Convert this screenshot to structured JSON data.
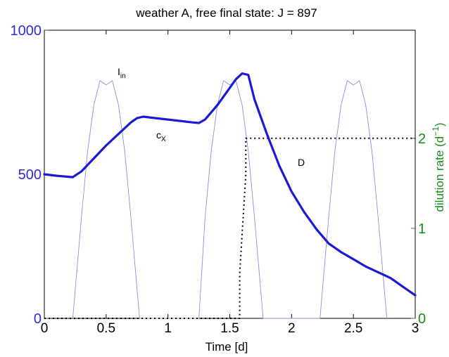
{
  "chart_data": {
    "type": "line",
    "title": "weather A, free final state: J = 897",
    "xlabel": "Time [d]",
    "ylabel_left": "",
    "ylabel_right": "dilution rate (d",
    "ylabel_right_sup": "−1",
    "ylabel_right_close": ")",
    "xlim": [
      0,
      3
    ],
    "ylim_left": [
      0,
      1000
    ],
    "ylim_right": [
      0,
      3.2
    ],
    "x_ticks": [
      "0",
      "0.5",
      "1",
      "1.5",
      "2",
      "2.5",
      "3"
    ],
    "x_tick_values": [
      0,
      0.5,
      1,
      1.5,
      2,
      2.5,
      3
    ],
    "y_left_ticks": [
      "0",
      "500",
      "1000"
    ],
    "y_left_tick_values": [
      0,
      500,
      1000
    ],
    "y_right_ticks": [
      "0",
      "1",
      "2"
    ],
    "y_right_tick_values": [
      0,
      1,
      2
    ],
    "annotations": {
      "i_in": {
        "main": "I",
        "sub": "in"
      },
      "c_x": {
        "main": "c",
        "sub": "X"
      },
      "d": {
        "main": "D",
        "sub": ""
      }
    },
    "series": [
      {
        "name": "cX",
        "axis": "left",
        "color": "#1a1ad6",
        "style": "thick-solid",
        "x": [
          0,
          0.1,
          0.23,
          0.3,
          0.4,
          0.5,
          0.6,
          0.7,
          0.75,
          0.8,
          0.9,
          1.0,
          1.1,
          1.2,
          1.25,
          1.3,
          1.4,
          1.5,
          1.55,
          1.6,
          1.65,
          1.7,
          1.8,
          1.9,
          2.0,
          2.1,
          2.2,
          2.3,
          2.4,
          2.5,
          2.6,
          2.7,
          2.8,
          2.9,
          3.0
        ],
        "y": [
          500,
          495,
          490,
          510,
          555,
          600,
          640,
          680,
          695,
          700,
          695,
          690,
          685,
          680,
          678,
          690,
          740,
          800,
          830,
          850,
          845,
          760,
          640,
          530,
          440,
          370,
          310,
          260,
          230,
          205,
          180,
          160,
          140,
          110,
          80
        ]
      },
      {
        "name": "Iin",
        "axis": "left",
        "color": "#8c8cd6",
        "style": "thin-solid",
        "note": "daily light input, three peaks around t = 0.5, 1.5, 2.5 with small dip at top",
        "x": [
          0.23,
          0.3,
          0.35,
          0.4,
          0.45,
          0.5,
          0.55,
          0.6,
          0.65,
          0.7,
          0.77,
          1.25,
          1.3,
          1.35,
          1.4,
          1.45,
          1.5,
          1.55,
          1.6,
          1.65,
          1.7,
          1.77,
          2.23,
          2.3,
          2.35,
          2.4,
          2.45,
          2.5,
          2.55,
          2.6,
          2.65,
          2.7,
          2.77
        ],
        "y": [
          0,
          350,
          580,
          740,
          825,
          810,
          825,
          740,
          580,
          350,
          0,
          0,
          350,
          580,
          740,
          825,
          810,
          825,
          740,
          580,
          350,
          0,
          0,
          350,
          580,
          740,
          825,
          810,
          825,
          740,
          580,
          350,
          0
        ]
      },
      {
        "name": "D",
        "axis": "right",
        "color": "#000000",
        "style": "dotted",
        "x": [
          0,
          1.58,
          1.58,
          1.63,
          1.63,
          3.0
        ],
        "y": [
          0,
          0,
          0.5,
          1.6,
          2.0,
          2.0
        ]
      }
    ]
  }
}
